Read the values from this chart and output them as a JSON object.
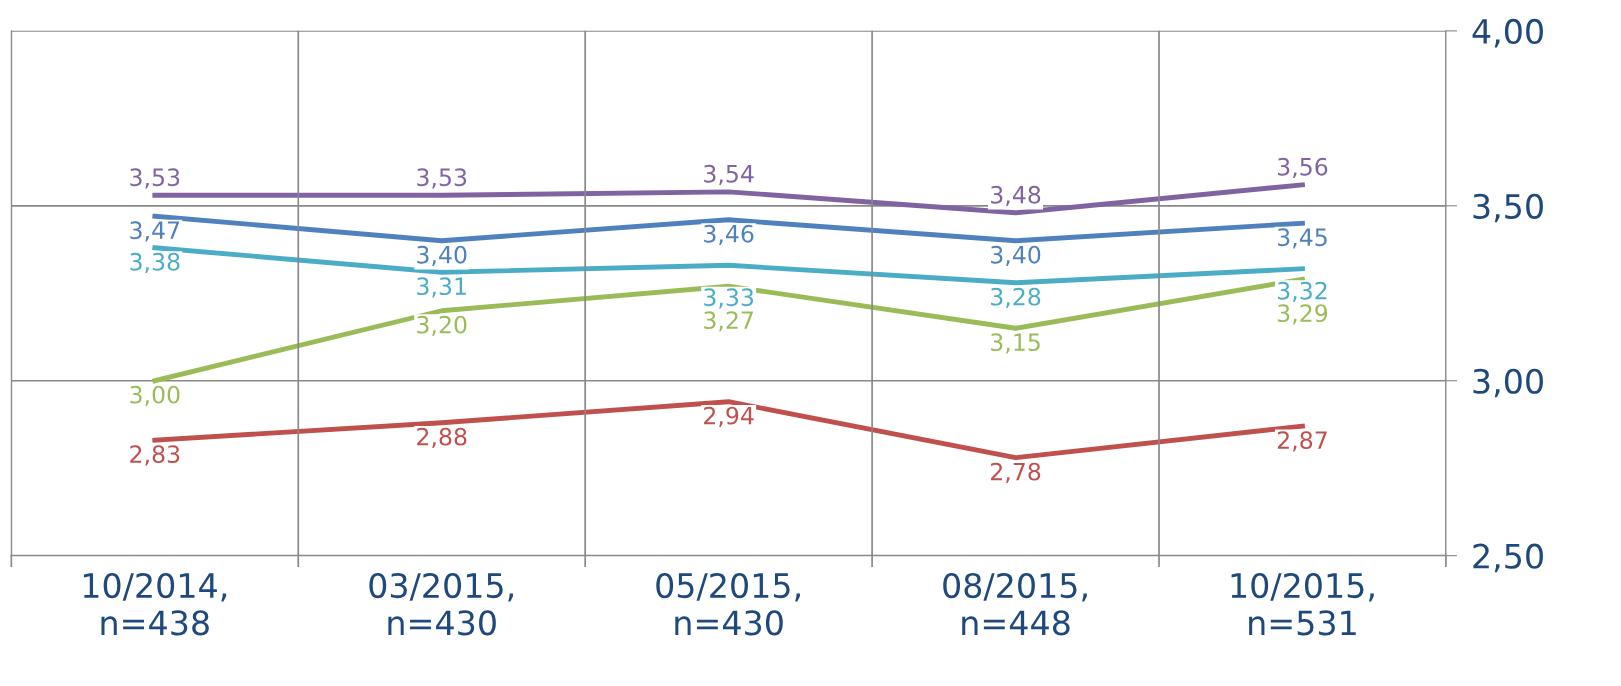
{
  "chart_data": {
    "type": "line",
    "categories": [
      "10/2014,\nn=438",
      "03/2015,\nn=430",
      "05/2015,\nn=430",
      "08/2015,\nn=448",
      "10/2015,\nn=531"
    ],
    "series": [
      {
        "color": "#8064a2",
        "values": [
          3.53,
          3.53,
          3.54,
          3.48,
          3.56
        ],
        "value_labels": [
          "3,53",
          "3,53",
          "3,54",
          "3,48",
          "3,56"
        ]
      },
      {
        "color": "#4f81bd",
        "values": [
          3.47,
          3.4,
          3.46,
          3.4,
          3.45
        ],
        "value_labels": [
          "3,47",
          "3,40",
          "3,46",
          "3,40",
          "3,45"
        ]
      },
      {
        "color": "#4bacc6",
        "values": [
          3.38,
          3.31,
          3.33,
          3.28,
          3.32
        ],
        "value_labels": [
          "3,38",
          "3,31",
          "3,33",
          "3,28",
          "3,32"
        ]
      },
      {
        "color": "#9bbb59",
        "values": [
          3.0,
          3.2,
          3.27,
          3.15,
          3.29
        ],
        "value_labels": [
          "3,00",
          "3,20",
          "3,27",
          "3,15",
          "3,29"
        ]
      },
      {
        "color": "#c0504d",
        "values": [
          2.83,
          2.88,
          2.94,
          2.78,
          2.87
        ],
        "value_labels": [
          "2,83",
          "2,88",
          "2,94",
          "2,78",
          "2,87"
        ]
      }
    ],
    "ylim": [
      2.5,
      4.0
    ],
    "yticks": [
      {
        "value": 2.5,
        "label": "2,50"
      },
      {
        "value": 3.0,
        "label": "3,00"
      },
      {
        "value": 3.5,
        "label": "3,50"
      },
      {
        "value": 4.0,
        "label": "4,00"
      }
    ],
    "grid": true,
    "legend": false,
    "marker": "none",
    "line_style": "solid"
  }
}
